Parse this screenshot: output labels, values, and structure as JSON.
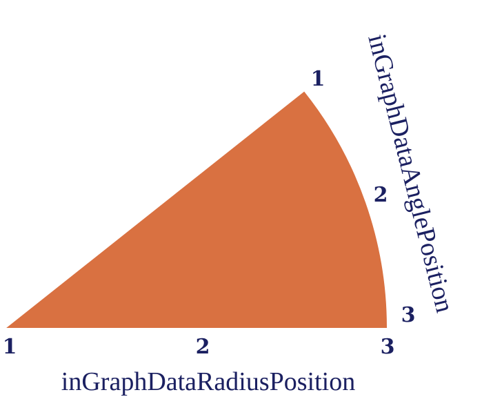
{
  "colors": {
    "sector_fill": "#d97141",
    "text": "#1b2061",
    "background": "#ffffff"
  },
  "radius_axis": {
    "title": "inGraphDataRadiusPosition",
    "ticks": [
      "1",
      "2",
      "3"
    ]
  },
  "angle_axis": {
    "title": "inGraphDataAnglePosition",
    "ticks": [
      "1",
      "2",
      "3"
    ]
  }
}
